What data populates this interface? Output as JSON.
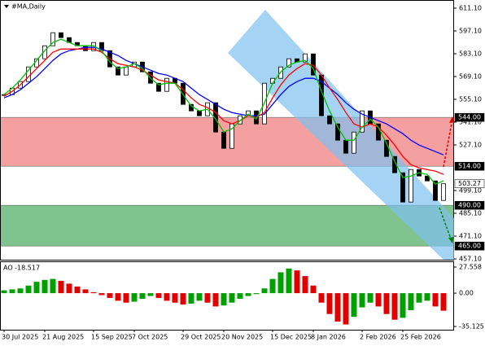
{
  "chart_data": [
    {
      "type": "candlestick",
      "title": "#MA,Daily",
      "categories": [
        "30 Jul 2025",
        null,
        null,
        null,
        null,
        "21 Aug 2025",
        null,
        null,
        null,
        null,
        null,
        "15 Sep 2025",
        null,
        null,
        null,
        null,
        "7 Oct 2025",
        null,
        null,
        null,
        null,
        null,
        "29 Oct 2025",
        null,
        null,
        null,
        null,
        "20 Nov 2025",
        null,
        null,
        null,
        null,
        null,
        "15 Dec 2025",
        null,
        null,
        null,
        null,
        "8 Jan 2026",
        null,
        null,
        null,
        null,
        null,
        "2 Feb 2026",
        null,
        null,
        null,
        null,
        "25 Feb 2026",
        null,
        null,
        null,
        null,
        null
      ],
      "close": [
        558,
        562,
        566,
        575,
        580,
        588,
        596,
        593,
        590,
        588,
        585,
        590,
        585,
        575,
        570,
        575,
        578,
        572,
        565,
        560,
        568,
        565,
        552,
        548,
        545,
        553,
        535,
        525,
        540,
        545,
        548,
        540,
        565,
        568,
        575,
        580,
        578,
        583,
        570,
        545,
        540,
        530,
        522,
        535,
        548,
        540,
        530,
        520,
        510,
        492,
        512,
        508,
        505,
        493,
        503.27
      ],
      "series": [
        {
          "color": "#0000ff",
          "values": [
            556,
            558,
            561,
            565,
            569,
            574,
            579,
            583,
            585,
            586,
            587,
            587,
            586,
            584,
            582,
            579,
            577,
            575,
            573,
            571,
            570,
            568,
            566,
            562,
            558,
            555,
            552,
            549,
            547,
            546,
            545,
            545,
            546,
            552,
            558,
            563,
            566,
            568,
            568,
            566,
            562,
            558,
            553,
            549,
            546,
            544,
            542,
            540,
            537,
            534,
            530,
            527,
            525,
            523,
            521
          ]
        },
        {
          "color": "#ff0000",
          "values": [
            557,
            560,
            564,
            569,
            574,
            579,
            584,
            586,
            586,
            586,
            586,
            586,
            584,
            580,
            577,
            576,
            575,
            573,
            570,
            567,
            566,
            565,
            561,
            556,
            552,
            550,
            547,
            542,
            540,
            542,
            545,
            544,
            547,
            556,
            564,
            570,
            574,
            577,
            576,
            570,
            562,
            555,
            547,
            540,
            538,
            540,
            538,
            533,
            527,
            520,
            515,
            513,
            512,
            511,
            509
          ]
        },
        {
          "color": "#00c000",
          "values": [
            558,
            562,
            567,
            573,
            579,
            585,
            590,
            592,
            590,
            588,
            588,
            588,
            585,
            578,
            574,
            575,
            577,
            574,
            568,
            564,
            565,
            565,
            558,
            551,
            548,
            549,
            543,
            535,
            537,
            542,
            546,
            543,
            553,
            565,
            572,
            576,
            578,
            579,
            574,
            560,
            548,
            538,
            530,
            530,
            538,
            543,
            538,
            528,
            517,
            507,
            508,
            510,
            509,
            503,
            505
          ]
        }
      ],
      "zones": [
        {
          "from": 514,
          "to": 544,
          "color": "#f4a0a0"
        },
        {
          "from": 465,
          "to": 490,
          "color": "#7fc48e"
        }
      ],
      "levels": [
        {
          "value": 544,
          "label": "544.00",
          "bg": "#000000",
          "fg": "#ffffff"
        },
        {
          "value": 514,
          "label": "514.00",
          "bg": "#000000",
          "fg": "#ffffff"
        },
        {
          "value": 503.27,
          "label": "503.27",
          "bg": "#ffffff",
          "fg": "#000000"
        },
        {
          "value": 490,
          "label": "490.00",
          "bg": "#000000",
          "fg": "#ffffff"
        },
        {
          "value": 465,
          "label": "465.00",
          "bg": "#000000",
          "fg": "#ffffff"
        }
      ],
      "ylim": [
        457.1,
        611.1
      ],
      "yticks": [
        {
          "value": 611.1,
          "label": "611.10"
        },
        {
          "value": 597.1,
          "label": "597.10"
        },
        {
          "value": 583.1,
          "label": "583.10"
        },
        {
          "value": 569.1,
          "label": "569.10"
        },
        {
          "value": 555.1,
          "label": "555.10"
        },
        {
          "value": 541.1,
          "label": "541.10"
        },
        {
          "value": 527.1,
          "label": "527.10"
        },
        {
          "value": 499.1,
          "label": "499.10"
        },
        {
          "value": 485.1,
          "label": "485.10"
        },
        {
          "value": 471.1,
          "label": "471.10"
        },
        {
          "value": 457.1,
          "label": "457.10"
        }
      ]
    },
    {
      "type": "bar",
      "title": "AO -18.517",
      "up_color": "#00a000",
      "down_color": "#e00000",
      "values": [
        3,
        4,
        5,
        8,
        12,
        14,
        15,
        13,
        10,
        7,
        4,
        1,
        -2,
        -5,
        -8,
        -10,
        -9,
        -6,
        -3,
        -5,
        -8,
        -10,
        -12,
        -11,
        -8,
        -10,
        -14,
        -13,
        -10,
        -6,
        -3,
        -1,
        5,
        15,
        22,
        26,
        24,
        18,
        8,
        -10,
        -22,
        -30,
        -33,
        -25,
        -15,
        -10,
        -14,
        -22,
        -28,
        -26,
        -18,
        -10,
        -8,
        -14,
        -18.517
      ],
      "ylim": [
        -35.125,
        27.558
      ],
      "yticks": [
        {
          "value": 27.558,
          "label": "27.558"
        },
        {
          "value": 0,
          "label": "0.00"
        },
        {
          "value": -35.125,
          "label": "-35.125"
        }
      ]
    }
  ]
}
